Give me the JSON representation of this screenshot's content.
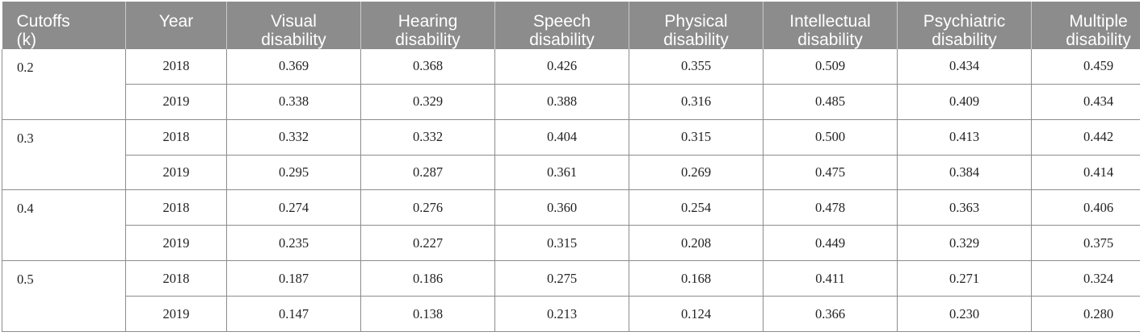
{
  "table": {
    "headers": [
      [
        "Cutoffs",
        "(k)"
      ],
      [
        "Year"
      ],
      [
        "Visual",
        "disability"
      ],
      [
        "Hearing",
        "disability"
      ],
      [
        "Speech",
        "disability"
      ],
      [
        "Physical",
        "disability"
      ],
      [
        "Intellectual",
        "disability"
      ],
      [
        "Psychiatric",
        "disability"
      ],
      [
        "Multiple",
        "disability"
      ]
    ],
    "groups": [
      {
        "cutoff": "0.2",
        "rows": [
          {
            "year": "2018",
            "values": [
              "0.369",
              "0.368",
              "0.426",
              "0.355",
              "0.509",
              "0.434",
              "0.459"
            ]
          },
          {
            "year": "2019",
            "values": [
              "0.338",
              "0.329",
              "0.388",
              "0.316",
              "0.485",
              "0.409",
              "0.434"
            ]
          }
        ]
      },
      {
        "cutoff": "0.3",
        "rows": [
          {
            "year": "2018",
            "values": [
              "0.332",
              "0.332",
              "0.404",
              "0.315",
              "0.500",
              "0.413",
              "0.442"
            ]
          },
          {
            "year": "2019",
            "values": [
              "0.295",
              "0.287",
              "0.361",
              "0.269",
              "0.475",
              "0.384",
              "0.414"
            ]
          }
        ]
      },
      {
        "cutoff": "0.4",
        "rows": [
          {
            "year": "2018",
            "values": [
              "0.274",
              "0.276",
              "0.360",
              "0.254",
              "0.478",
              "0.363",
              "0.406"
            ]
          },
          {
            "year": "2019",
            "values": [
              "0.235",
              "0.227",
              "0.315",
              "0.208",
              "0.449",
              "0.329",
              "0.375"
            ]
          }
        ]
      },
      {
        "cutoff": "0.5",
        "rows": [
          {
            "year": "2018",
            "values": [
              "0.187",
              "0.186",
              "0.275",
              "0.168",
              "0.411",
              "0.271",
              "0.324"
            ]
          },
          {
            "year": "2019",
            "values": [
              "0.147",
              "0.138",
              "0.213",
              "0.124",
              "0.366",
              "0.230",
              "0.280"
            ]
          }
        ]
      }
    ]
  },
  "colors": {
    "header_bg": "#8c8c8c",
    "header_text": "#ffffff",
    "grid": "#8c8c8c"
  }
}
